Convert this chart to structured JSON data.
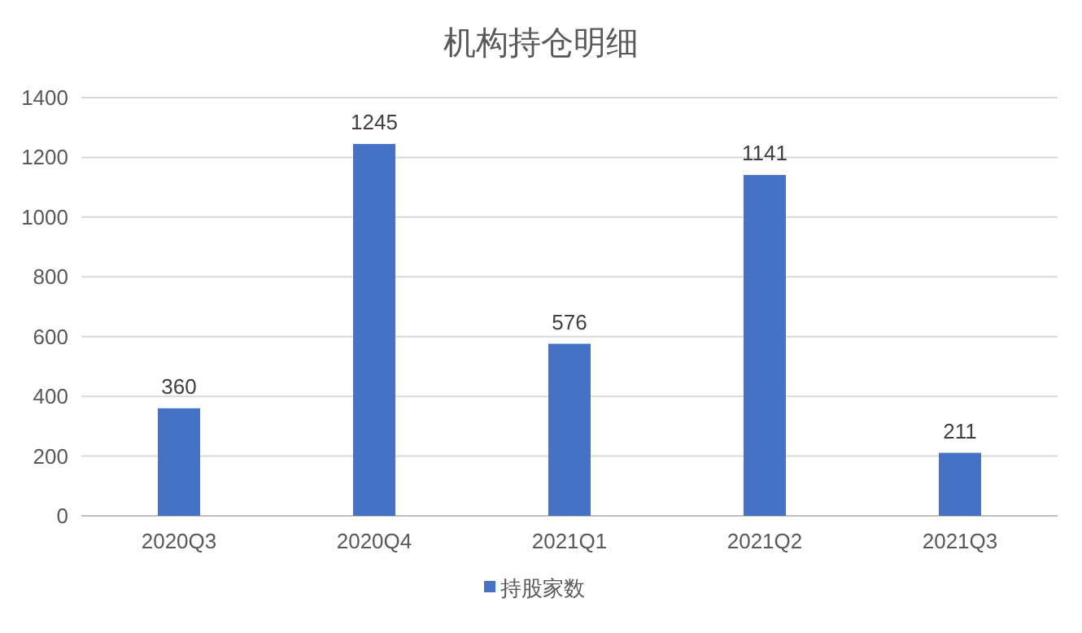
{
  "chart_data": {
    "type": "bar",
    "title": "机构持仓明细",
    "categories": [
      "2020Q3",
      "2020Q4",
      "2021Q1",
      "2021Q2",
      "2021Q3"
    ],
    "series": [
      {
        "name": "持股家数",
        "color": "#4472c4",
        "values": [
          360,
          1245,
          576,
          1141,
          211
        ]
      }
    ],
    "ylim": [
      0,
      1400
    ],
    "yticks": [
      0,
      200,
      400,
      600,
      800,
      1000,
      1200,
      1400
    ],
    "grid": "y",
    "legend": "bottom",
    "data_labels": true
  }
}
